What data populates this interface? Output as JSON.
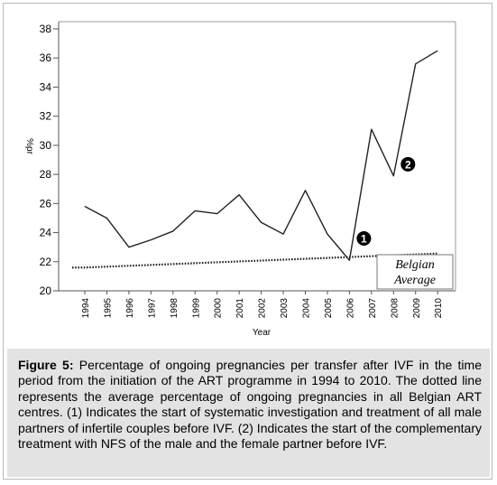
{
  "chart_data": {
    "type": "line",
    "xlabel": "Year",
    "ylabel": "%pr",
    "ylim": [
      20,
      38
    ],
    "yticks": [
      20,
      22,
      24,
      26,
      28,
      30,
      32,
      34,
      36,
      38
    ],
    "grid": false,
    "categories": [
      "1994",
      "1995",
      "1996",
      "1997",
      "1998",
      "1999",
      "2000",
      "2001",
      "2002",
      "2003",
      "2004",
      "2005",
      "2006",
      "2007",
      "2008",
      "2009",
      "2010"
    ],
    "series": [
      {
        "values": [
          25.8,
          25.0,
          23.0,
          23.5,
          24.1,
          25.5,
          25.3,
          26.6,
          24.7,
          23.9,
          26.9,
          23.9,
          22.1,
          31.1,
          27.9,
          35.6,
          36.5
        ],
        "style": "solid",
        "color": "#222222"
      },
      {
        "name": "Belgian Average",
        "values": [
          21.6,
          21.66,
          21.72,
          21.78,
          21.84,
          21.9,
          21.96,
          22.02,
          22.08,
          22.14,
          22.2,
          22.26,
          22.32,
          22.38,
          22.44,
          22.5,
          22.56
        ],
        "style": "dotted",
        "color": "#222222"
      }
    ],
    "legend": {
      "label_line1": "Belgian",
      "label_line2": "Average",
      "placement": "bottom-right"
    },
    "markers": [
      {
        "label": "1",
        "year": "2006",
        "value": 23.6
      },
      {
        "label": "2",
        "year": "2008",
        "value": 28.7
      }
    ]
  },
  "caption": {
    "figure_label": "Figure 5:",
    "text": " Percentage of ongoing pregnancies per transfer after IVF in the time period from the initiation of the ART programme in 1994 to 2010. The dotted line represents the average percentage of ongoing pregnancies in all Belgian ART centres. (1) Indicates the start of systematic investigation and treatment of all male partners of infertile couples before IVF. (2) Indicates the start of the complementary treatment with NFS of the male and the female partner before IVF."
  }
}
